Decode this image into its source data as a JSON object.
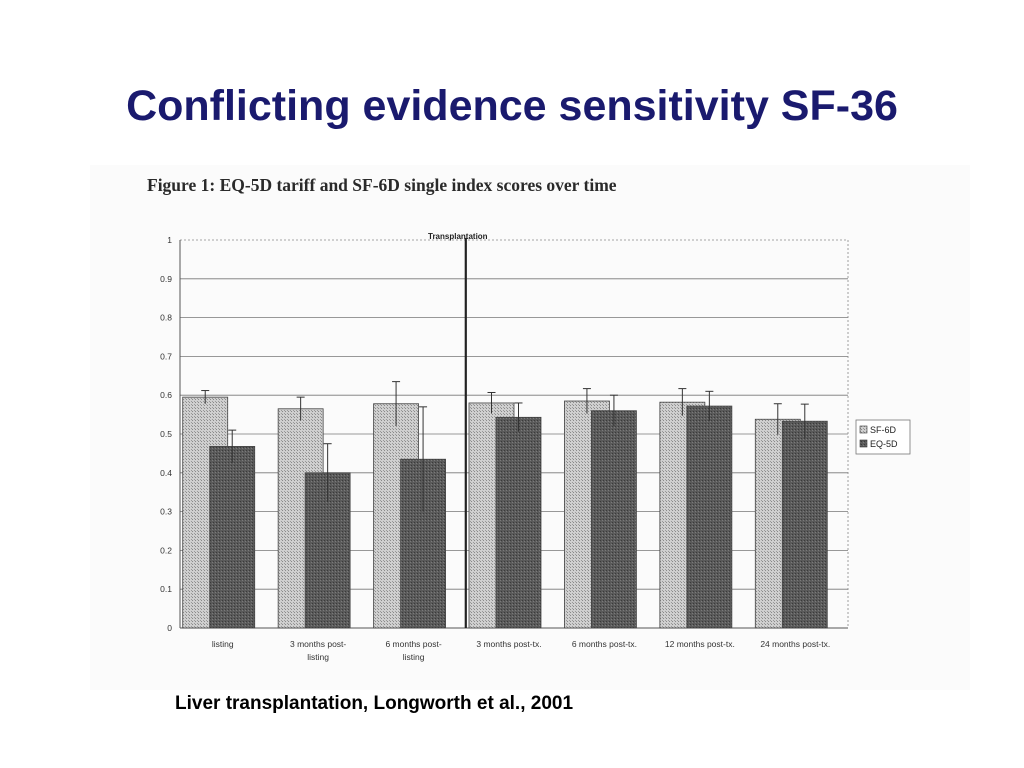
{
  "slide": {
    "title": "Conflicting evidence sensitivity SF-36",
    "figure_caption": "Figure 1: EQ-5D tariff and SF-6D single index scores over time",
    "footer": "Liver transplantation,  Longworth et al., 2001"
  },
  "colors": {
    "title": "#1a1a6e",
    "sf6d_fill": "#cfcfcf",
    "eq5d_fill": "#5a5a5a"
  },
  "chart_data": {
    "type": "bar",
    "categories": [
      [
        "listing"
      ],
      [
        "3 months post-",
        "listing"
      ],
      [
        "6 months post-",
        "listing"
      ],
      [
        "3 months post-tx."
      ],
      [
        "6 months post-tx."
      ],
      [
        "12 months post-tx."
      ],
      [
        "24 months post-tx."
      ]
    ],
    "series": [
      {
        "name": "SF-6D",
        "values": [
          0.595,
          0.565,
          0.578,
          0.58,
          0.585,
          0.582,
          0.538
        ],
        "error_upper": [
          0.612,
          0.595,
          0.635,
          0.607,
          0.617,
          0.617,
          0.578
        ]
      },
      {
        "name": "EQ-5D",
        "values": [
          0.468,
          0.4,
          0.435,
          0.543,
          0.56,
          0.572,
          0.533
        ],
        "error_upper": [
          0.51,
          0.475,
          0.57,
          0.58,
          0.6,
          0.61,
          0.577
        ]
      }
    ],
    "ylim": [
      0,
      1
    ],
    "yticks": [
      "0",
      "0.1",
      "0.2",
      "0.3",
      "0.4",
      "0.5",
      "0.6",
      "0.7",
      "0.8",
      "0.9",
      "1"
    ],
    "annotation": "Transplantation",
    "annotation_after_category": 2,
    "legend_position": "right",
    "grid": true
  }
}
